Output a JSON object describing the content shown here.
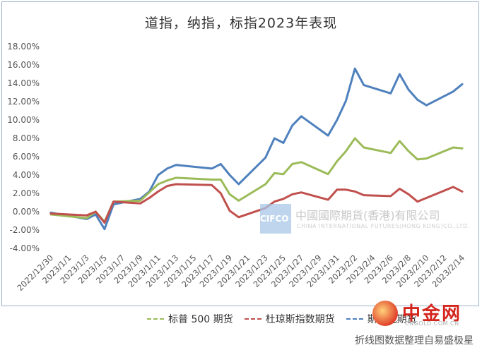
{
  "title": "道指，纳指，标指2023年表现",
  "watermark": {
    "badge": "CIFCO",
    "company": "中國國際期貨(香港)有限公司",
    "company_en": "CHINA INTERNATIONAL FUTURES(HONG KONG)CO.,LTD."
  },
  "logo": {
    "name": "中金网",
    "sub": "CNGOLD.COM.CN"
  },
  "legend": [
    "标普 500 期货",
    "杜琼斯指数期货",
    "斯达克期货"
  ],
  "footer": "折线图数据整理自易盛极星",
  "colors": {
    "spx": "#9bbb59",
    "dji": "#c0504d",
    "ndx": "#4f81bd"
  },
  "chart_data": {
    "type": "line",
    "title": "道指，纳指，标指2023年表现",
    "x": [
      "2022/12/30",
      "2023/1/3",
      "2023/1/4",
      "2023/1/5",
      "2023/1/6",
      "2023/1/9",
      "2023/1/10",
      "2023/1/11",
      "2023/1/12",
      "2023/1/13",
      "2023/1/17",
      "2023/1/18",
      "2023/1/19",
      "2023/1/20",
      "2023/1/23",
      "2023/1/24",
      "2023/1/25",
      "2023/1/26",
      "2023/1/27",
      "2023/1/30",
      "2023/1/31",
      "2023/2/1",
      "2023/2/2",
      "2023/2/3",
      "2023/2/6",
      "2023/2/7",
      "2023/2/8",
      "2023/2/9",
      "2023/2/10",
      "2023/2/13",
      "2023/2/14"
    ],
    "x_tick_labels": [
      "2022/12/30",
      "2023/1/1",
      "2023/1/3",
      "2023/1/5",
      "2023/1/7",
      "2023/1/9",
      "2023/1/11",
      "2023/1/13",
      "2023/1/15",
      "2023/1/17",
      "2023/1/19",
      "2023/1/21",
      "2023/1/23",
      "2023/1/25",
      "2023/1/27",
      "2023/1/29",
      "2023/1/31",
      "2023/2/2",
      "2023/2/4",
      "2023/2/6",
      "2023/2/8",
      "2023/2/10",
      "2023/2/12",
      "2023/2/14"
    ],
    "y_tick_labels": [
      "-4.00%",
      "-2.00%",
      "0.00%",
      "2.00%",
      "4.00%",
      "6.00%",
      "8.00%",
      "10.00%",
      "12.00%",
      "14.00%",
      "16.00%",
      "18.00%"
    ],
    "ylim": [
      -4,
      18
    ],
    "grid": false,
    "legend_position": "bottom",
    "series": [
      {
        "name": "斯达克期货",
        "key": "ndx",
        "values": [
          -0.1,
          -0.8,
          -0.3,
          -1.9,
          0.8,
          1.4,
          2.2,
          4.0,
          4.7,
          5.1,
          4.7,
          5.2,
          4.0,
          3.0,
          5.9,
          8.0,
          7.5,
          9.4,
          10.4,
          8.3,
          10.0,
          12.1,
          15.6,
          13.8,
          12.9,
          15.0,
          13.3,
          12.2,
          11.6,
          13.1,
          13.9
        ]
      },
      {
        "name": "标普 500 期货",
        "key": "spx",
        "values": [
          -0.3,
          -0.7,
          0.0,
          -1.1,
          1.1,
          1.2,
          2.1,
          3.0,
          3.4,
          3.7,
          3.5,
          3.5,
          1.9,
          1.2,
          3.0,
          4.2,
          4.1,
          5.2,
          5.4,
          4.1,
          5.5,
          6.6,
          8.0,
          7.0,
          6.4,
          7.7,
          6.6,
          5.7,
          5.8,
          7.0,
          6.9
        ]
      },
      {
        "name": "杜琼斯指数期货",
        "key": "dji",
        "values": [
          -0.2,
          -0.4,
          0.0,
          -1.2,
          1.1,
          0.9,
          1.5,
          2.2,
          2.8,
          3.0,
          2.9,
          2.0,
          0.1,
          -0.6,
          0.4,
          1.1,
          1.4,
          1.9,
          2.1,
          1.3,
          2.4,
          2.4,
          2.2,
          1.8,
          1.7,
          2.5,
          1.9,
          1.1,
          1.5,
          2.7,
          2.2
        ]
      }
    ]
  }
}
